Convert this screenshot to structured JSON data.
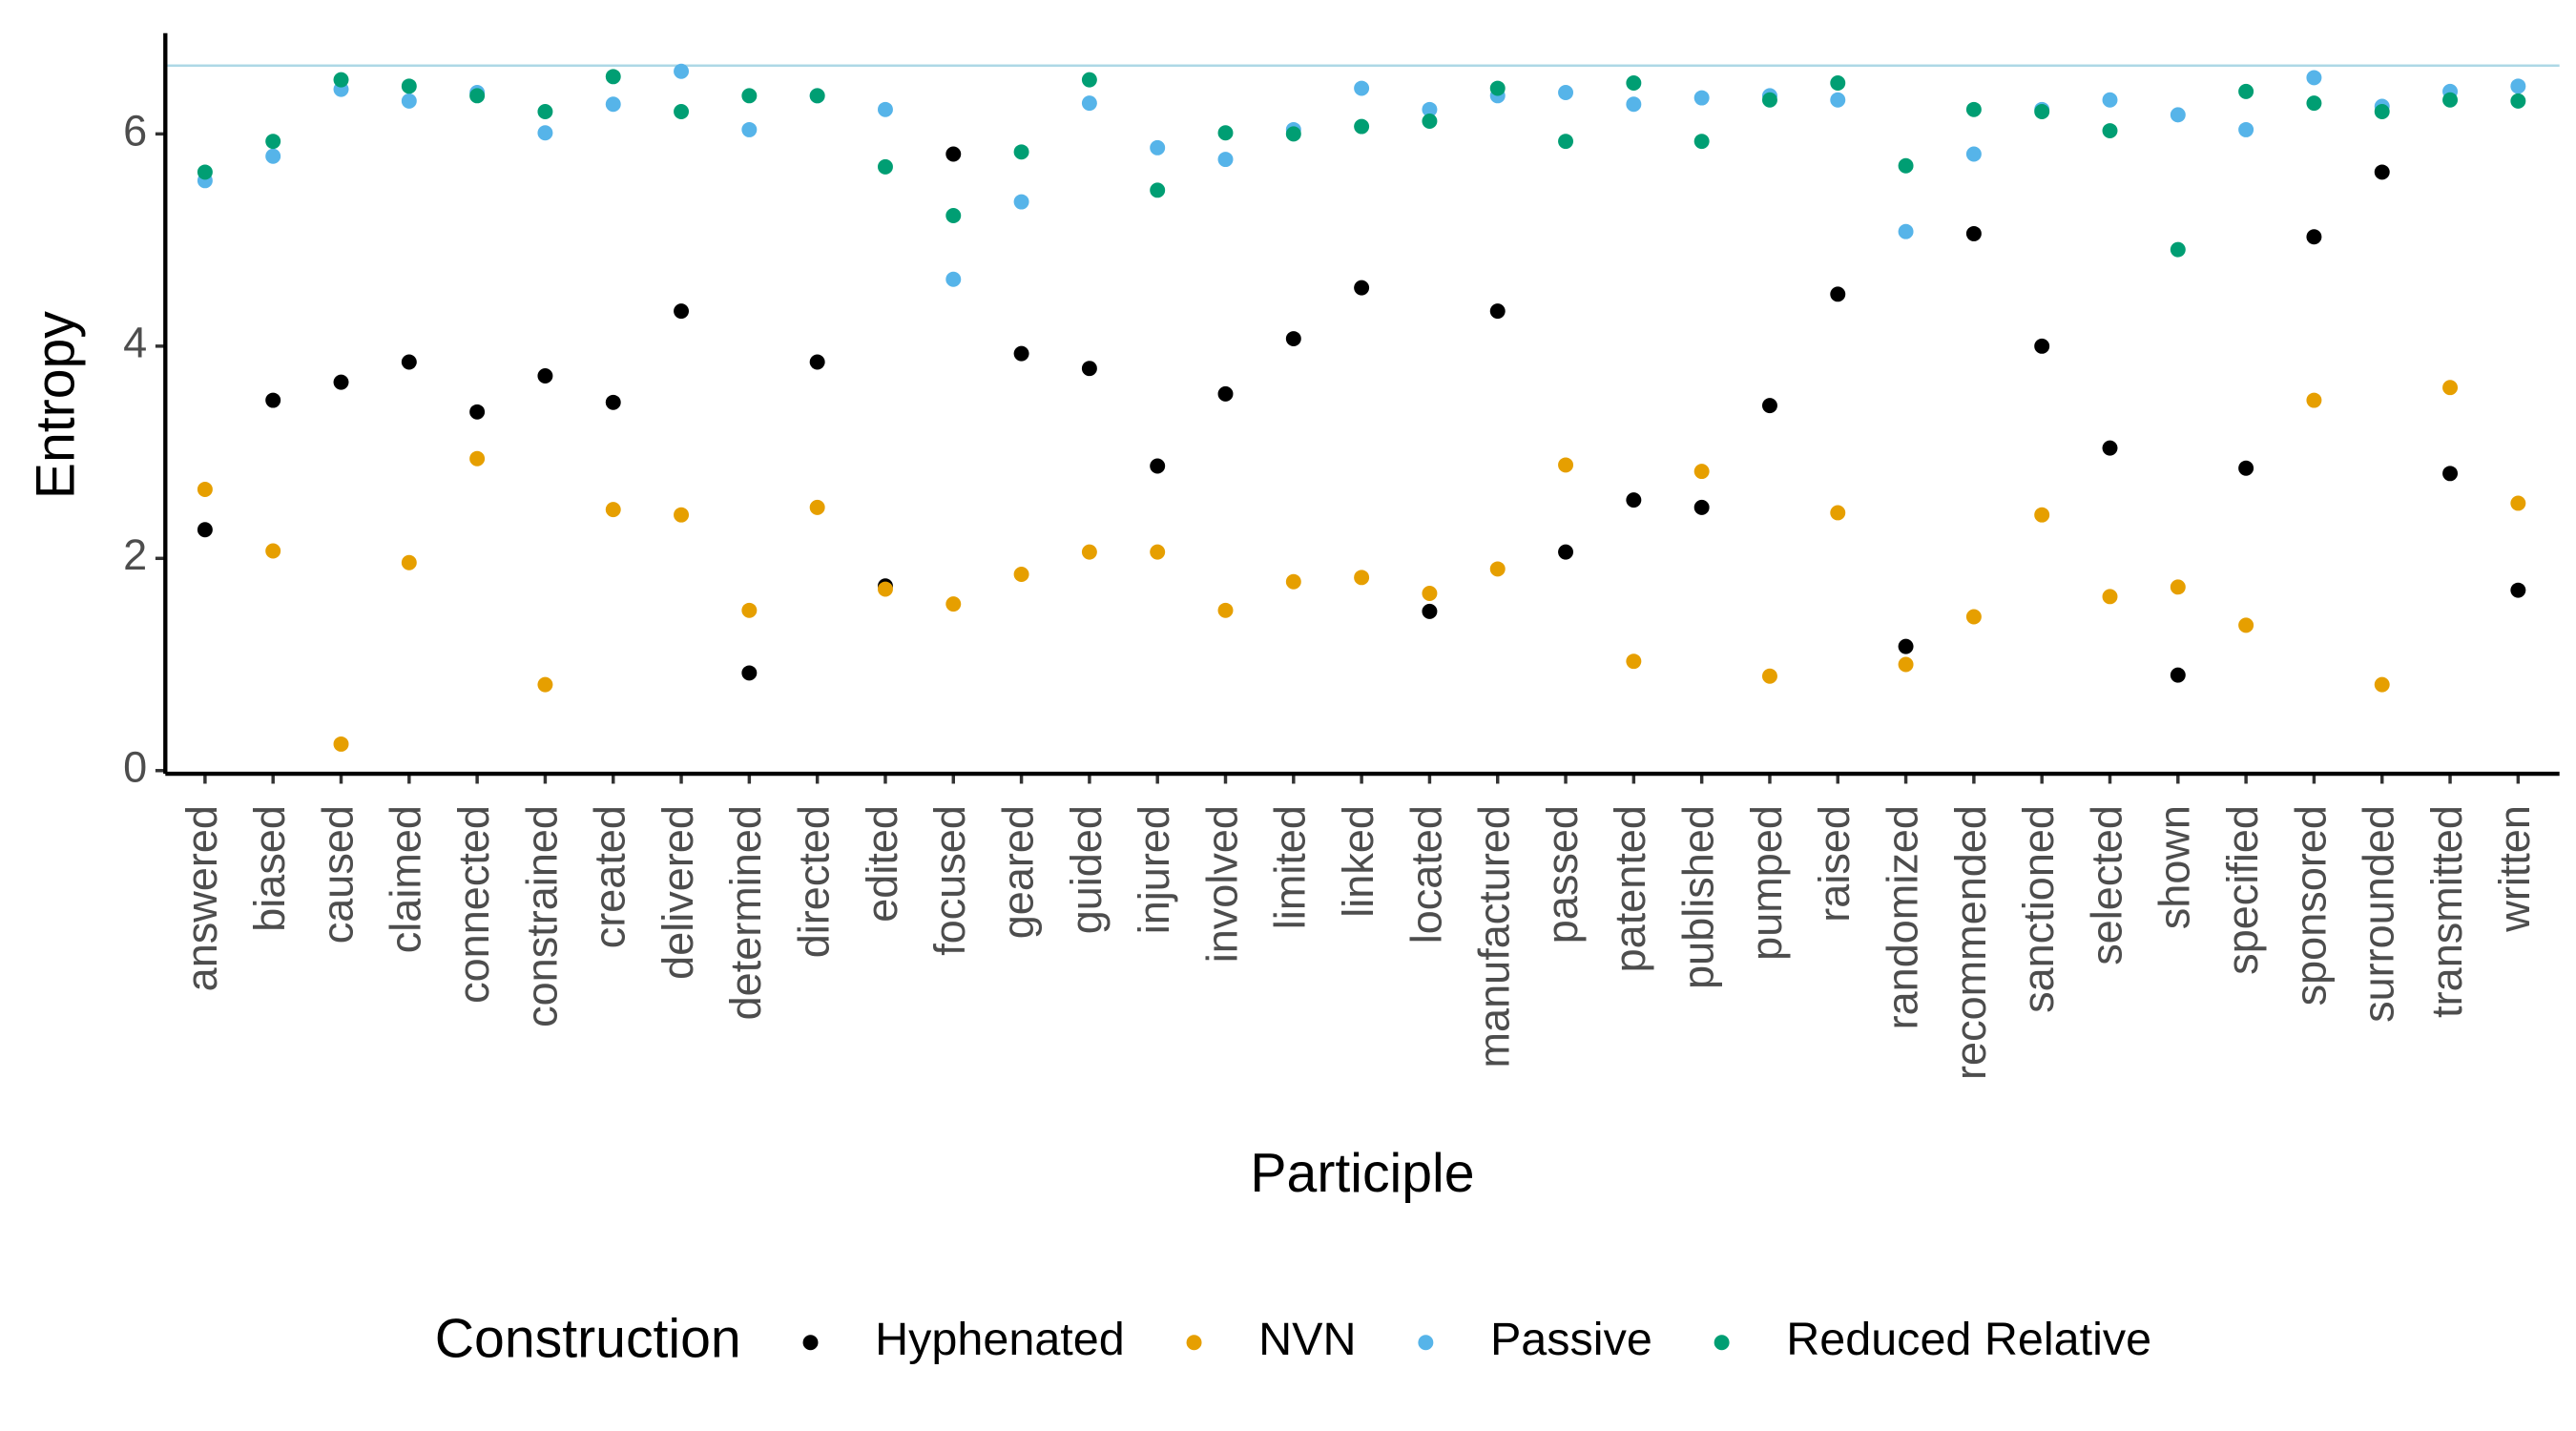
{
  "chart_data": {
    "type": "scatter",
    "x_label": "Participle",
    "y_label": "Entropy",
    "legend_title": "Construction",
    "legend_position": "bottom",
    "categories": [
      "answered",
      "biased",
      "caused",
      "claimed",
      "connected",
      "constrained",
      "created",
      "delivered",
      "determined",
      "directed",
      "edited",
      "focused",
      "geared",
      "guided",
      "injured",
      "involved",
      "limited",
      "linked",
      "located",
      "manufactured",
      "passed",
      "patented",
      "published",
      "pumped",
      "raised",
      "randomized",
      "recommended",
      "sanctioned",
      "selected",
      "shown",
      "specified",
      "sponsored",
      "surrounded",
      "transmitted",
      "written"
    ],
    "ylim": [
      -0.03,
      6.95
    ],
    "yticks": [
      0,
      2,
      4,
      6
    ],
    "hline": {
      "value": 6.644,
      "color": "#add8e6"
    },
    "series": [
      {
        "name": "Hyphenated",
        "color": "#000000",
        "values": [
          2.27,
          3.49,
          3.66,
          3.85,
          3.38,
          3.72,
          3.47,
          4.33,
          0.92,
          3.85,
          1.74,
          5.81,
          3.93,
          3.79,
          2.87,
          3.55,
          4.07,
          4.55,
          1.5,
          4.33,
          2.06,
          2.55,
          2.48,
          3.44,
          4.49,
          1.17,
          5.06,
          4.0,
          3.04,
          0.9,
          2.85,
          5.03,
          5.64,
          2.8,
          1.7
        ]
      },
      {
        "name": "NVN",
        "color": "#E69F00",
        "values": [
          2.65,
          2.07,
          0.25,
          1.96,
          2.94,
          0.81,
          2.46,
          2.41,
          1.51,
          2.48,
          1.71,
          1.57,
          1.85,
          2.06,
          2.06,
          1.51,
          1.78,
          1.82,
          1.67,
          1.9,
          2.88,
          1.03,
          2.82,
          0.89,
          2.43,
          1.0,
          1.45,
          2.41,
          1.64,
          1.73,
          1.37,
          3.49,
          0.81,
          3.61,
          2.52
        ]
      },
      {
        "name": "Passive",
        "color": "#56B4E9",
        "values": [
          5.56,
          5.79,
          6.42,
          6.31,
          6.39,
          6.01,
          6.28,
          6.59,
          6.04,
          6.36,
          6.23,
          4.63,
          5.36,
          6.29,
          5.87,
          5.76,
          6.04,
          6.43,
          6.23,
          6.36,
          6.39,
          6.28,
          6.34,
          6.36,
          6.32,
          5.08,
          5.81,
          6.23,
          6.32,
          6.18,
          6.04,
          6.53,
          6.26,
          6.4,
          6.45
        ]
      },
      {
        "name": "Reduced Relative",
        "color": "#009E73",
        "values": [
          5.64,
          5.93,
          6.51,
          6.45,
          6.36,
          6.21,
          6.54,
          6.21,
          6.36,
          6.36,
          5.69,
          5.23,
          5.83,
          6.51,
          5.47,
          6.01,
          6.0,
          6.07,
          6.12,
          6.43,
          5.93,
          6.48,
          5.93,
          6.32,
          6.48,
          5.7,
          6.23,
          6.21,
          6.03,
          4.91,
          6.4,
          6.29,
          6.21,
          6.32,
          6.31
        ]
      }
    ]
  }
}
